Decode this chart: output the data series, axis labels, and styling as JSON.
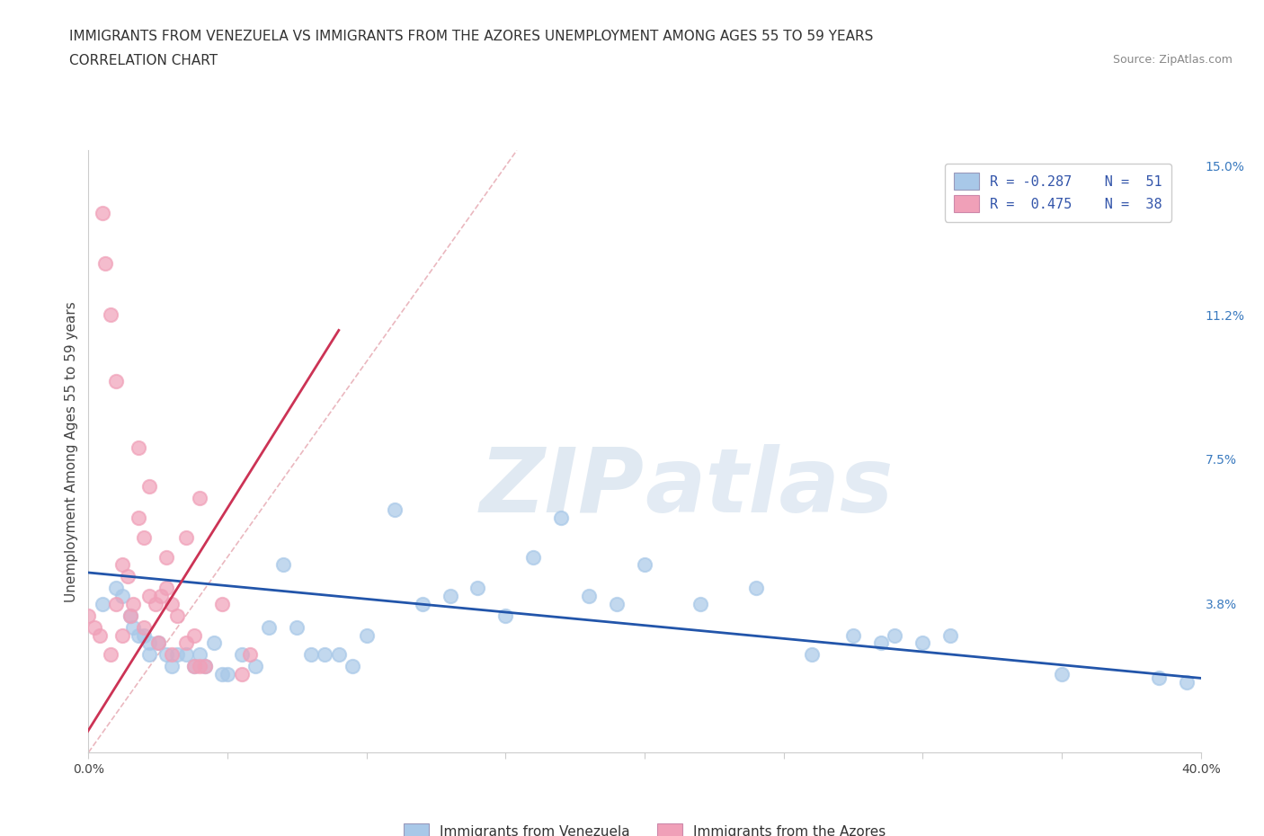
{
  "title_line1": "IMMIGRANTS FROM VENEZUELA VS IMMIGRANTS FROM THE AZORES UNEMPLOYMENT AMONG AGES 55 TO 59 YEARS",
  "title_line2": "CORRELATION CHART",
  "source_text": "Source: ZipAtlas.com",
  "ylabel": "Unemployment Among Ages 55 to 59 years",
  "xlim": [
    0.0,
    0.4
  ],
  "ylim": [
    0.0,
    0.154
  ],
  "xticks": [
    0.0,
    0.05,
    0.1,
    0.15,
    0.2,
    0.25,
    0.3,
    0.35,
    0.4
  ],
  "xticklabels": [
    "0.0%",
    "",
    "",
    "",
    "",
    "",
    "",
    "",
    "40.0%"
  ],
  "yticks_right": [
    0.038,
    0.075,
    0.112,
    0.15
  ],
  "yticklabels_right": [
    "3.8%",
    "7.5%",
    "11.2%",
    "15.0%"
  ],
  "watermark_zip": "ZIP",
  "watermark_atlas": "atlas",
  "legend_r1": "R = -0.287",
  "legend_n1": "N =  51",
  "legend_r2": "R =  0.475",
  "legend_n2": "N =  38",
  "blue_color": "#a8c8e8",
  "pink_color": "#f0a0b8",
  "blue_line_color": "#2255aa",
  "pink_line_color": "#cc3355",
  "diag_line_color": "#e8b0b8",
  "venezuela_x": [
    0.005,
    0.01,
    0.012,
    0.015,
    0.016,
    0.018,
    0.02,
    0.022,
    0.022,
    0.025,
    0.028,
    0.03,
    0.032,
    0.035,
    0.038,
    0.04,
    0.042,
    0.045,
    0.048,
    0.05,
    0.055,
    0.06,
    0.065,
    0.07,
    0.075,
    0.08,
    0.085,
    0.09,
    0.095,
    0.1,
    0.11,
    0.12,
    0.13,
    0.14,
    0.15,
    0.16,
    0.17,
    0.18,
    0.19,
    0.2,
    0.22,
    0.24,
    0.26,
    0.275,
    0.285,
    0.29,
    0.3,
    0.31,
    0.35,
    0.385,
    0.395
  ],
  "venezuela_y": [
    0.038,
    0.042,
    0.04,
    0.035,
    0.032,
    0.03,
    0.03,
    0.028,
    0.025,
    0.028,
    0.025,
    0.022,
    0.025,
    0.025,
    0.022,
    0.025,
    0.022,
    0.028,
    0.02,
    0.02,
    0.025,
    0.022,
    0.032,
    0.048,
    0.032,
    0.025,
    0.025,
    0.025,
    0.022,
    0.03,
    0.062,
    0.038,
    0.04,
    0.042,
    0.035,
    0.05,
    0.06,
    0.04,
    0.038,
    0.048,
    0.038,
    0.042,
    0.025,
    0.03,
    0.028,
    0.03,
    0.028,
    0.03,
    0.02,
    0.019,
    0.018
  ],
  "azores_x": [
    0.0,
    0.002,
    0.004,
    0.005,
    0.006,
    0.008,
    0.01,
    0.012,
    0.014,
    0.016,
    0.018,
    0.02,
    0.022,
    0.024,
    0.026,
    0.028,
    0.03,
    0.032,
    0.035,
    0.038,
    0.04,
    0.008,
    0.012,
    0.018,
    0.022,
    0.028,
    0.035,
    0.04,
    0.048,
    0.058,
    0.01,
    0.015,
    0.02,
    0.025,
    0.03,
    0.038,
    0.042,
    0.055
  ],
  "azores_y": [
    0.035,
    0.032,
    0.03,
    0.138,
    0.125,
    0.112,
    0.095,
    0.048,
    0.045,
    0.038,
    0.078,
    0.055,
    0.04,
    0.038,
    0.04,
    0.042,
    0.038,
    0.035,
    0.028,
    0.03,
    0.022,
    0.025,
    0.03,
    0.06,
    0.068,
    0.05,
    0.055,
    0.065,
    0.038,
    0.025,
    0.038,
    0.035,
    0.032,
    0.028,
    0.025,
    0.022,
    0.022,
    0.02
  ],
  "blue_trend_x": [
    0.0,
    0.4
  ],
  "blue_trend_y": [
    0.046,
    0.019
  ],
  "pink_trend_x": [
    -0.005,
    0.09
  ],
  "pink_trend_y": [
    0.0,
    0.108
  ],
  "background_color": "#ffffff",
  "grid_color": "#cccccc",
  "title_fontsize": 11,
  "subtitle_fontsize": 11,
  "source_fontsize": 9,
  "axis_label_fontsize": 11,
  "tick_fontsize": 10
}
